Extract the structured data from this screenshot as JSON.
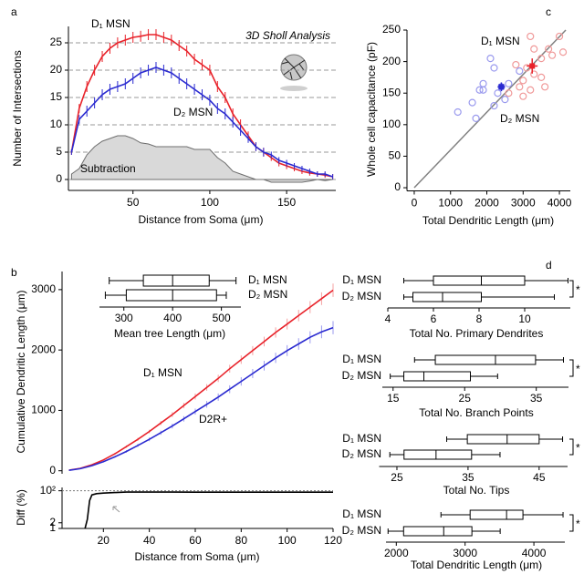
{
  "chart_data": [
    {
      "type": "line",
      "panel": "a",
      "x_label": "Distance from Soma (μm)",
      "y_label": "Number of Intersections",
      "annotations": [
        "3D Sholl Analysis"
      ],
      "x": [
        10,
        15,
        20,
        25,
        30,
        35,
        40,
        45,
        50,
        55,
        60,
        65,
        70,
        75,
        80,
        85,
        90,
        95,
        100,
        105,
        110,
        115,
        120,
        125,
        130,
        135,
        140,
        145,
        150,
        155,
        160,
        165,
        170,
        175,
        180
      ],
      "xlim": [
        8,
        182
      ],
      "ylim": [
        -2,
        28
      ],
      "xticks": [
        50,
        100,
        150
      ],
      "yticks": [
        0,
        5,
        10,
        15,
        20,
        25
      ],
      "grid": true,
      "series": [
        {
          "name": "D₁ MSN",
          "color": "#e8222a",
          "values": [
            5,
            13,
            17,
            20,
            22.5,
            24,
            25,
            25.5,
            26,
            26.2,
            26.5,
            26.5,
            26,
            25.5,
            24.5,
            23.5,
            22,
            21,
            20,
            17,
            15,
            12,
            10,
            8,
            6,
            5,
            4,
            3,
            2.5,
            2,
            1.5,
            1.2,
            1,
            0.8,
            0.5
          ],
          "errors": [
            0.5,
            0.8,
            1,
            1,
            1,
            1,
            1,
            1,
            1,
            1,
            1,
            1,
            1,
            1,
            1,
            1,
            1,
            1,
            1,
            1,
            1,
            1,
            1,
            0.8,
            0.8,
            0.8,
            0.6,
            0.6,
            0.6,
            0.5,
            0.5,
            0.5,
            0.5,
            0.5,
            0.5
          ]
        },
        {
          "name": "D₂ MSN",
          "color": "#2a2ad0",
          "values": [
            5,
            11,
            12.5,
            14,
            15.5,
            16.5,
            17,
            17.5,
            18.5,
            19.5,
            20,
            20.5,
            20,
            19.5,
            18.5,
            17.5,
            16.5,
            15.5,
            14.5,
            13,
            12,
            10.5,
            9,
            7.5,
            6,
            5,
            4.5,
            3.5,
            3,
            2.5,
            2,
            1.5,
            1,
            1,
            0.5
          ],
          "errors": [
            0.5,
            0.8,
            1,
            1,
            1,
            1,
            1,
            1,
            1,
            1,
            1,
            1,
            1,
            1,
            1,
            1,
            1,
            1,
            1,
            1,
            1,
            1,
            1,
            0.8,
            0.8,
            0.8,
            0.6,
            0.6,
            0.6,
            0.5,
            0.5,
            0.5,
            0.5,
            0.5,
            0.5
          ]
        },
        {
          "name": "Subtraction",
          "color": "#6e6e6e",
          "fill_color": "#d9d9d9",
          "values": [
            1,
            2,
            4.5,
            6,
            7,
            7.5,
            8,
            8,
            7.5,
            6.7,
            6.5,
            6,
            6,
            6,
            6,
            6,
            5.5,
            5.5,
            5.5,
            4,
            3,
            1.5,
            1,
            0.5,
            0,
            0,
            -0.5,
            -0.5,
            -0.5,
            -0.5,
            -0.5,
            -0.3,
            0,
            -0.2,
            0
          ]
        }
      ]
    },
    {
      "type": "line",
      "panel": "b",
      "y_label": "Cumulative Dendritic Length (μm)",
      "x": [
        5,
        10,
        15,
        20,
        25,
        30,
        35,
        40,
        45,
        50,
        55,
        60,
        65,
        70,
        75,
        80,
        85,
        90,
        95,
        100,
        105,
        110,
        115,
        120
      ],
      "xlim": [
        2,
        120
      ],
      "ylim": [
        -50,
        3300
      ],
      "yticks": [
        0,
        1000,
        2000,
        3000
      ],
      "series": [
        {
          "name": "D₁ MSN",
          "color": "#e8222a",
          "error_color": "#f4a0a0",
          "values": [
            10,
            40,
            100,
            180,
            280,
            400,
            520,
            650,
            790,
            930,
            1080,
            1230,
            1380,
            1530,
            1690,
            1840,
            1990,
            2140,
            2290,
            2430,
            2570,
            2710,
            2850,
            2990
          ],
          "errors": [
            2,
            5,
            8,
            12,
            15,
            20,
            25,
            30,
            35,
            40,
            45,
            50,
            55,
            60,
            65,
            70,
            75,
            80,
            85,
            90,
            95,
            100,
            105,
            110
          ]
        },
        {
          "name": "D2R+",
          "color": "#2a2ad0",
          "error_color": "#9a9aee",
          "values": [
            8,
            35,
            85,
            150,
            230,
            320,
            420,
            520,
            630,
            740,
            860,
            980,
            1100,
            1220,
            1350,
            1480,
            1610,
            1740,
            1870,
            1990,
            2100,
            2210,
            2300,
            2370
          ],
          "errors": [
            2,
            5,
            8,
            12,
            15,
            20,
            25,
            30,
            35,
            40,
            45,
            50,
            55,
            60,
            65,
            70,
            75,
            80,
            85,
            90,
            95,
            100,
            105,
            110
          ]
        }
      ]
    },
    {
      "type": "box",
      "x_label": "Mean tree Length (μm)",
      "xlim": [
        250,
        540
      ],
      "xticks": [
        300,
        400,
        500
      ],
      "series": [
        {
          "name": "D₁ MSN",
          "color": "#e8222a",
          "min": 270,
          "q1": 340,
          "median": 400,
          "q3": 475,
          "max": 530
        },
        {
          "name": "D₂ MSN",
          "color": "#2a2ad0",
          "min": 262,
          "q1": 305,
          "median": 400,
          "q3": 490,
          "max": 510
        }
      ]
    },
    {
      "type": "line",
      "x_label": "Distance from Soma (μm)",
      "y_label": "Diff (%)",
      "log_y": true,
      "x": [
        12,
        13,
        14,
        15,
        17,
        20,
        25,
        30,
        40,
        50,
        60,
        70,
        80,
        90,
        100,
        110,
        120
      ],
      "xlim": [
        2,
        120
      ],
      "ylim": [
        1,
        150
      ],
      "xticks": [
        20,
        40,
        60,
        80,
        100,
        120
      ],
      "yticks": [
        1,
        2,
        {
          "value": 100,
          "label": "10²"
        }
      ],
      "reference_y": 100,
      "series": [
        {
          "color": "#000000",
          "values": [
            1,
            3,
            30,
            60,
            70,
            75,
            80,
            85,
            85,
            85,
            84,
            84,
            84,
            84,
            84,
            84,
            84
          ]
        }
      ]
    },
    {
      "type": "scatter",
      "panel": "c",
      "x_label": "Total Dendritic Length (μm)",
      "y_label": "Whole cell capacitance (pF)",
      "xlim": [
        -200,
        4300
      ],
      "ylim": [
        -5,
        250
      ],
      "xticks": [
        0,
        1000,
        2000,
        3000,
        4000
      ],
      "yticks": [
        0,
        50,
        100,
        150,
        200,
        250
      ],
      "fit_line": {
        "color": "#808080",
        "x": [
          0,
          4175
        ],
        "y": [
          0,
          250
        ]
      },
      "series": [
        {
          "name": "D₁ MSN",
          "color": "#e8222a",
          "point_color": "#f09a9a",
          "x": [
            3200,
            3300,
            3700,
            4000,
            3800,
            3500,
            2800,
            3100,
            3300,
            3000,
            3500,
            2900,
            3600,
            3200,
            2600,
            3000,
            4100
          ],
          "y": [
            240,
            220,
            220,
            240,
            210,
            205,
            195,
            190,
            180,
            170,
            175,
            160,
            160,
            155,
            150,
            145,
            215
          ],
          "mean_x": 3250,
          "mean_y": 193,
          "mean_xerr": 150,
          "mean_yerr": 12
        },
        {
          "name": "D₂ MSN",
          "color": "#2a2ad0",
          "point_color": "#9a9aee",
          "x": [
            2100,
            2200,
            2900,
            1900,
            2400,
            1800,
            1900,
            2300,
            2500,
            2200,
            1700,
            1200,
            1600,
            2600
          ],
          "y": [
            205,
            190,
            185,
            165,
            160,
            155,
            155,
            150,
            140,
            130,
            110,
            120,
            135,
            165
          ],
          "mean_x": 2400,
          "mean_y": 160,
          "mean_xerr": 100,
          "mean_yerr": 7
        }
      ]
    },
    {
      "type": "box",
      "panel": "d",
      "x_label": "Total No. Primary Dendrites",
      "xlim": [
        4,
        12
      ],
      "xticks": [
        4,
        6,
        8,
        10
      ],
      "annotation": "*",
      "series": [
        {
          "name": "D₁ MSN",
          "color": "#e8222a",
          "min": 4.7,
          "q1": 6,
          "median": 8.1,
          "q3": 10,
          "max": 11.9
        },
        {
          "name": "D₂ MSN",
          "color": "#2a2ad0",
          "min": 4.7,
          "q1": 5.1,
          "median": 6.4,
          "q3": 8.1,
          "max": 11.3
        }
      ]
    },
    {
      "type": "box",
      "x_label": "Total No. Branch Points",
      "xlim": [
        13.5,
        39.5
      ],
      "xticks": [
        15,
        25,
        35
      ],
      "annotation": "*",
      "series": [
        {
          "name": "D₁ MSN",
          "color": "#e8222a",
          "min": 18,
          "q1": 20.9,
          "median": 29.3,
          "q3": 34.9,
          "max": 38.8
        },
        {
          "name": "D₂ MSN",
          "color": "#2a2ad0",
          "min": 14.6,
          "q1": 16.5,
          "median": 19.3,
          "q3": 25.8,
          "max": 29.6
        }
      ]
    },
    {
      "type": "box",
      "x_label": "Total No. Tips",
      "xlim": [
        22.5,
        49
      ],
      "xticks": [
        25,
        35,
        45
      ],
      "annotation": "*",
      "series": [
        {
          "name": "D₁ MSN",
          "color": "#e8222a",
          "min": 32,
          "q1": 34.9,
          "median": 40.5,
          "q3": 45,
          "max": 48.3
        },
        {
          "name": "D₂ MSN",
          "color": "#2a2ad0",
          "min": 24,
          "q1": 26,
          "median": 30.5,
          "q3": 35.5,
          "max": 39.5
        }
      ]
    },
    {
      "type": "box",
      "x_label": "Total Dendritic Length (μm)",
      "xlim": [
        1850,
        4450
      ],
      "xticks": [
        2000,
        3000,
        4000
      ],
      "annotation": "*",
      "series": [
        {
          "name": "D₁ MSN",
          "color": "#e8222a",
          "min": 2649,
          "q1": 3073,
          "median": 3603,
          "q3": 3841,
          "max": 4424
        },
        {
          "name": "D₂ MSN",
          "color": "#2a2ad0",
          "min": 1880,
          "q1": 2106,
          "median": 2689,
          "q3": 3099,
          "max": 3510
        }
      ]
    }
  ]
}
